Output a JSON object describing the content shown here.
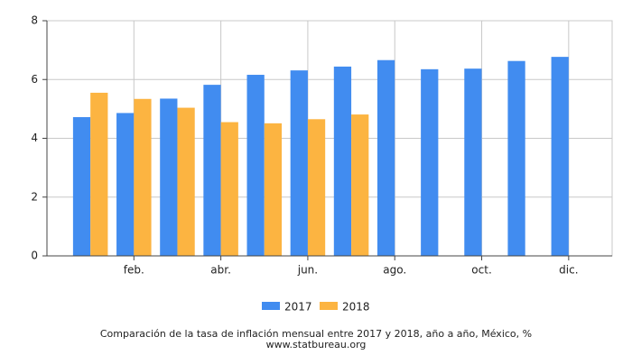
{
  "chart_data": {
    "type": "bar",
    "title": "Comparación de la tasa de inflación mensual entre 2017 y 2018, año a año, México, %",
    "subtitle": "www.statbureau.org",
    "categories": [
      null,
      "feb.",
      null,
      "abr.",
      null,
      "jun.",
      null,
      "ago.",
      null,
      "oct.",
      null,
      "dic."
    ],
    "series": [
      {
        "name": "2017",
        "color": "#418cf0",
        "values": [
          4.72,
          4.86,
          5.35,
          5.82,
          6.16,
          6.31,
          6.44,
          6.66,
          6.35,
          6.37,
          6.63,
          6.77
        ]
      },
      {
        "name": "2018",
        "color": "#fcb441",
        "values": [
          5.55,
          5.34,
          5.04,
          4.55,
          4.51,
          4.65,
          4.81,
          null,
          null,
          null,
          null,
          null
        ]
      }
    ],
    "ylim": [
      0,
      8
    ],
    "yticks": [
      0,
      2,
      4,
      6,
      8
    ],
    "grid": true
  }
}
